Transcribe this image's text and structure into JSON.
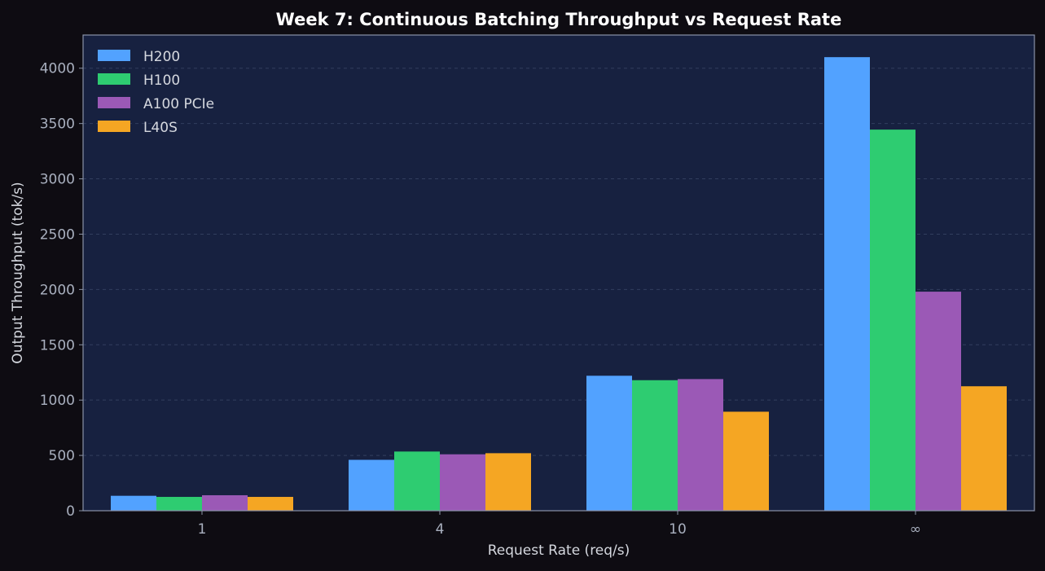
{
  "chart_data": {
    "type": "bar",
    "title": "Week 7: Continuous Batching Throughput vs Request Rate",
    "xlabel": "Request Rate (req/s)",
    "ylabel": "Output Throughput (tok/s)",
    "categories": [
      "1",
      "4",
      "10",
      "∞"
    ],
    "ylim": [
      0,
      4300
    ],
    "yticks": [
      0,
      500,
      1000,
      1500,
      2000,
      2500,
      3000,
      3500,
      4000
    ],
    "grid": "horizontal, dashed",
    "legend_position": "top-left",
    "series": [
      {
        "name": "H200",
        "color": "#52a2ff",
        "values": [
          135,
          460,
          1220,
          4100
        ]
      },
      {
        "name": "H100",
        "color": "#2ecc71",
        "values": [
          125,
          535,
          1180,
          3445
        ]
      },
      {
        "name": "A100 PCIe",
        "color": "#9b59b6",
        "values": [
          140,
          510,
          1190,
          1980
        ]
      },
      {
        "name": "L40S",
        "color": "#f5a623",
        "values": [
          125,
          520,
          895,
          1125
        ]
      }
    ]
  },
  "colors": {
    "page_background": "#0e0c12",
    "plot_background": "#172140",
    "axis_text": "#a9b0bf",
    "label_text": "#d5d8df",
    "title_text": "#ffffff"
  }
}
